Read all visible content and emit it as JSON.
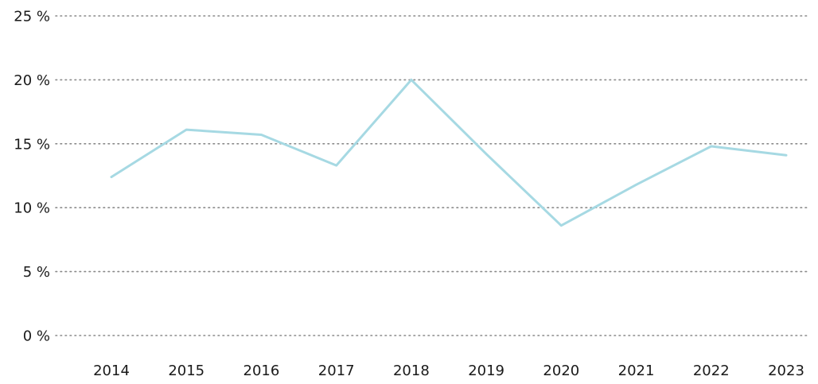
{
  "chart_data": {
    "type": "line",
    "title": "",
    "xlabel": "",
    "ylabel": "",
    "x": [
      "2014",
      "2015",
      "2016",
      "2017",
      "2018",
      "2019",
      "2020",
      "2021",
      "2022",
      "2023"
    ],
    "series": [
      {
        "values": [
          12.4,
          16.1,
          15.7,
          13.3,
          20.0,
          14.2,
          8.6,
          11.8,
          14.8,
          14.1
        ],
        "color": "#a6d9e3"
      }
    ],
    "ylim": [
      0,
      25
    ],
    "yticks": [
      0,
      5,
      10,
      15,
      20,
      25
    ],
    "ytick_labels": [
      "0 %",
      "5 %",
      "10 %",
      "15 %",
      "20 %",
      "25 %"
    ],
    "grid": true,
    "grid_color": "#8a8a8a",
    "legend": "none"
  }
}
